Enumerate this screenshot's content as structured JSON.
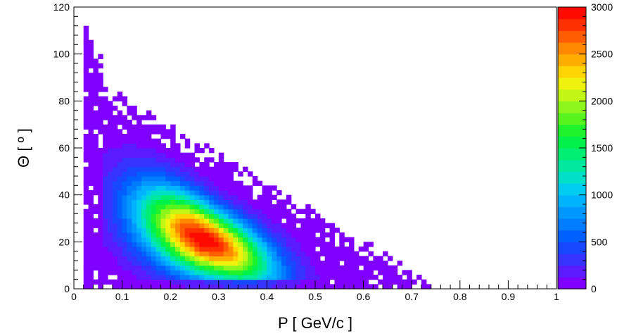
{
  "chart_data": {
    "type": "heatmap",
    "title": "",
    "xlabel": "P [ GeV/c ]",
    "ylabel": "Θ [ º ]",
    "xlim": [
      0,
      1
    ],
    "ylim": [
      0,
      120
    ],
    "zlim": [
      0,
      3000
    ],
    "x_ticks": [
      0,
      0.1,
      0.2,
      0.3,
      0.4,
      0.5,
      0.6,
      0.7,
      0.8,
      0.9,
      1
    ],
    "x_tick_labels": [
      "0",
      "0.1",
      "0.2",
      "0.3",
      "0.4",
      "0.5",
      "0.6",
      "0.7",
      "0.8",
      "0.9",
      "1"
    ],
    "y_ticks": [
      0,
      20,
      40,
      60,
      80,
      100,
      120
    ],
    "y_tick_labels": [
      "0",
      "20",
      "40",
      "60",
      "80",
      "100",
      "120"
    ],
    "z_ticks": [
      0,
      500,
      1000,
      1500,
      2000,
      2500,
      3000
    ],
    "z_tick_labels": [
      "0",
      "500",
      "1000",
      "1500",
      "2000",
      "2500",
      "3000"
    ],
    "colorscale": [
      "#7f00ff",
      "#5a1bff",
      "#3733ff",
      "#1748ff",
      "#0060ff",
      "#007dff",
      "#0098ff",
      "#00b3ff",
      "#00ccf0",
      "#00dfc8",
      "#00e99f",
      "#00ef73",
      "#00f148",
      "#1df22a",
      "#58f41e",
      "#8cf61b",
      "#c2f615",
      "#eef20c",
      "#ffd400",
      "#ffae00",
      "#ff8800",
      "#ff5d00",
      "#ff3000",
      "#ff0a00"
    ],
    "grid": false,
    "legend": "colorbar-right",
    "bin_width_x": 0.01,
    "bin_width_y": 2,
    "distribution": {
      "peak_x": 0.27,
      "peak_y": 21,
      "peak_count": 3000,
      "ridge": "theta decreases as P increases; upper bound from ~115 deg at P=0.02 to ~2 deg at P=0.72",
      "max_x": 0.73,
      "max_y": 116
    }
  }
}
